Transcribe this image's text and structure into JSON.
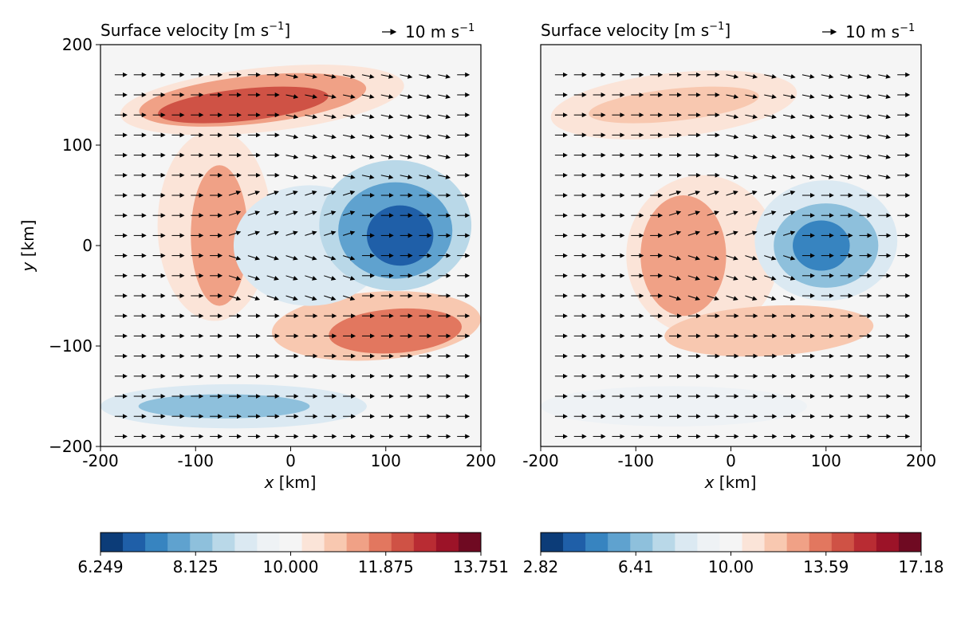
{
  "chart_data": [
    {
      "type": "heatmap",
      "title": "Surface velocity [m s",
      "title_sup": "−1",
      "title_end": "]",
      "reference_vector": "10 m s",
      "reference_vector_sup": "−1",
      "xlabel_var": "x",
      "xlabel_unit": " [km]",
      "ylabel_var": "y",
      "ylabel_unit": " [km]",
      "xlim": [
        -200,
        200
      ],
      "ylim": [
        -200,
        200
      ],
      "xticks": [
        "-200",
        "-100",
        "0",
        "100",
        "200"
      ],
      "yticks": [
        "200",
        "100",
        "0",
        "−100",
        "−200"
      ],
      "colormap": "RdBu_r",
      "colorbar_range": [
        6.249,
        13.751
      ],
      "colorbar_ticks": [
        "6.249",
        "8.125",
        "10.000",
        "11.875",
        "13.751"
      ],
      "features": [
        {
          "x": -50,
          "y": 140,
          "value": 12.8
        },
        {
          "x": 110,
          "y": 10,
          "value": 6.6
        },
        {
          "x": -70,
          "y": 10,
          "value": 11.6
        },
        {
          "x": 40,
          "y": -90,
          "value": 12.6
        },
        {
          "x": -70,
          "y": -160,
          "value": 7.3
        },
        {
          "x": 20,
          "y": 0,
          "value": 9.4
        }
      ]
    },
    {
      "type": "heatmap",
      "title": "Surface velocity [m s",
      "title_sup": "−1",
      "title_end": "]",
      "reference_vector": "10 m s",
      "reference_vector_sup": "−1",
      "xlabel_var": "x",
      "xlabel_unit": " [km]",
      "xlim": [
        -200,
        200
      ],
      "ylim": [
        -200,
        200
      ],
      "xticks": [
        "-200",
        "-100",
        "0",
        "100",
        "200"
      ],
      "colormap": "RdBu_r",
      "colorbar_range": [
        2.82,
        17.18
      ],
      "colorbar_ticks": [
        "2.82",
        "6.41",
        "10.00",
        "13.59",
        "17.18"
      ],
      "features": [
        {
          "x": -50,
          "y": -20,
          "value": 13.3
        },
        {
          "x": 100,
          "y": 0,
          "value": 4.6
        },
        {
          "x": -60,
          "y": 140,
          "value": 11.8
        },
        {
          "x": 30,
          "y": -85,
          "value": 12.6
        },
        {
          "x": -70,
          "y": -160,
          "value": 9.0
        }
      ]
    }
  ]
}
